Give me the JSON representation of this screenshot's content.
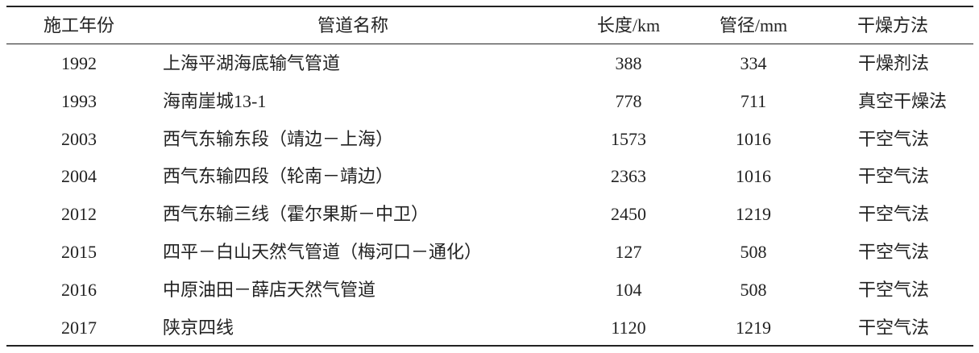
{
  "table": {
    "headers": {
      "year": "施工年份",
      "name": "管道名称",
      "length": "长度/km",
      "diameter": "管径/mm",
      "method": "干燥方法"
    },
    "rows": [
      {
        "year": "1992",
        "name": "上海平湖海底输气管道",
        "length": "388",
        "diameter": "334",
        "method": "干燥剂法"
      },
      {
        "year": "1993",
        "name": "海南崖城13-1",
        "length": "778",
        "diameter": "711",
        "method": "真空干燥法"
      },
      {
        "year": "2003",
        "name": "西气东输东段（靖边－上海）",
        "length": "1573",
        "diameter": "1016",
        "method": "干空气法"
      },
      {
        "year": "2004",
        "name": "西气东输四段（轮南－靖边）",
        "length": "2363",
        "diameter": "1016",
        "method": "干空气法"
      },
      {
        "year": "2012",
        "name": "西气东输三线（霍尔果斯－中卫）",
        "length": "2450",
        "diameter": "1219",
        "method": "干空气法"
      },
      {
        "year": "2015",
        "name": "四平－白山天然气管道（梅河口－通化）",
        "length": "127",
        "diameter": "508",
        "method": "干空气法"
      },
      {
        "year": "2016",
        "name": "中原油田－薛店天然气管道",
        "length": "104",
        "diameter": "508",
        "method": "干空气法"
      },
      {
        "year": "2017",
        "name": "陕京四线",
        "length": "1120",
        "diameter": "1219",
        "method": "干空气法"
      }
    ]
  }
}
